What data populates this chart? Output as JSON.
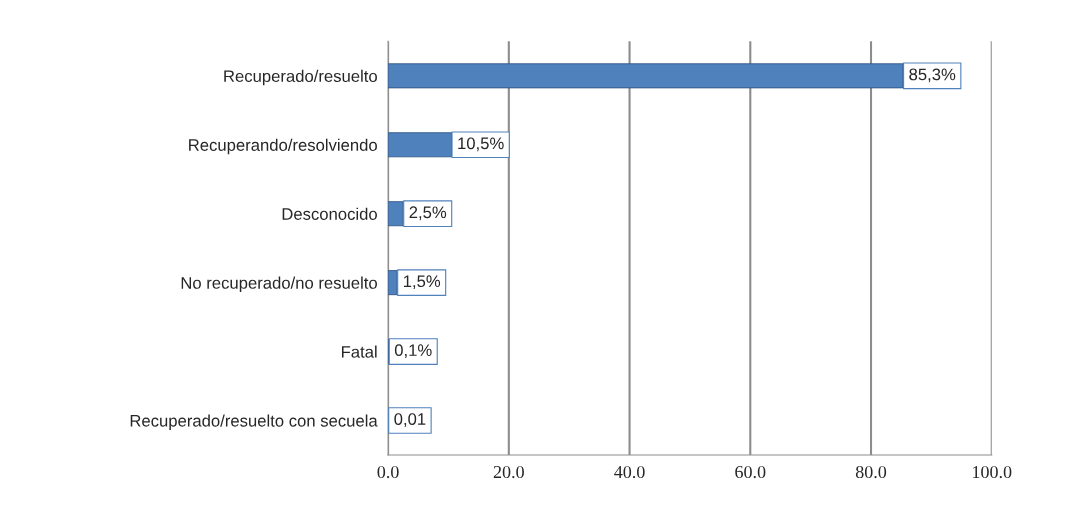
{
  "chart_data": {
    "type": "bar",
    "orientation": "horizontal",
    "categories": [
      "Recuperado/resuelto",
      "Recuperando/resolviendo",
      "Desconocido",
      "No recuperado/no resuelto",
      "Fatal",
      "Recuperado/resuelto con secuela"
    ],
    "values": [
      85.3,
      10.5,
      2.5,
      1.5,
      0.1,
      0.01
    ],
    "value_labels": [
      "85,3%",
      "10,5%",
      "2,5%",
      "1,5%",
      "0,1%",
      "0,01"
    ],
    "color": "#4f81bd",
    "xlim": [
      0,
      100
    ],
    "xticks": [
      {
        "value": 0,
        "label": "0.0"
      },
      {
        "value": 20,
        "label": "20.0"
      },
      {
        "value": 40,
        "label": "40.0"
      },
      {
        "value": 60,
        "label": "60.0"
      },
      {
        "value": 80,
        "label": "80.0"
      },
      {
        "value": 100,
        "label": "100.0"
      }
    ],
    "grid": "x"
  }
}
